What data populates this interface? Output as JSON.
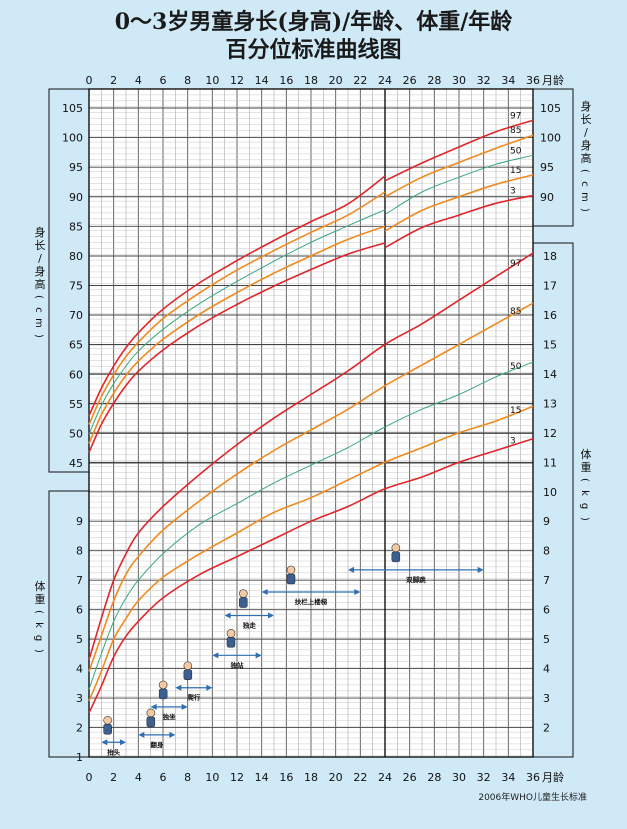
{
  "title_line1": "0～3岁男童身长(身高)/年龄、体重/年龄",
  "title_line2": "百分位标准曲线图",
  "source_note": "2006年WHO儿童生长标准",
  "chart_data": {
    "type": "line",
    "x_unit_label": "月龄",
    "x_ticks": [
      0,
      2,
      4,
      6,
      8,
      10,
      12,
      14,
      16,
      18,
      20,
      22,
      24,
      26,
      28,
      30,
      32,
      34,
      36
    ],
    "xlim": [
      0,
      36
    ],
    "grid": true,
    "length_panel": {
      "ylabel": "身长/身高(cm)",
      "ylim": [
        42,
        107
      ],
      "left_ticks": [
        45,
        50,
        55,
        60,
        65,
        70,
        75,
        80,
        85,
        90,
        95,
        100,
        105
      ],
      "right_ticks": [
        90,
        95,
        100,
        105
      ],
      "x_months": [
        0,
        1,
        2,
        3,
        4,
        6,
        9,
        12,
        15,
        18,
        21,
        24,
        27,
        30,
        33,
        36
      ],
      "series": [
        {
          "name": "97",
          "color": "#e0262b",
          "values": [
            53.0,
            57.6,
            61.4,
            64.5,
            67.0,
            71.0,
            75.5,
            79.2,
            82.6,
            85.8,
            88.8,
            93.5,
            95.7,
            98.4,
            101.0,
            102.9
          ]
        },
        {
          "name": "85",
          "color": "#f08a1f",
          "values": [
            51.5,
            56.2,
            59.9,
            63.0,
            65.4,
            69.4,
            73.8,
            77.6,
            80.9,
            84.0,
            86.9,
            90.8,
            93.3,
            95.8,
            98.2,
            100.4
          ]
        },
        {
          "name": "50",
          "color": "#3aa87b",
          "values": [
            49.9,
            54.7,
            58.4,
            61.4,
            63.9,
            67.6,
            72.0,
            75.7,
            79.1,
            82.3,
            85.1,
            87.8,
            90.8,
            93.3,
            95.5,
            97.0
          ]
        },
        {
          "name": "15",
          "color": "#f08a1f",
          "values": [
            48.3,
            53.1,
            56.8,
            59.8,
            62.2,
            65.9,
            70.2,
            73.8,
            77.1,
            80.0,
            82.8,
            85.0,
            87.7,
            90.0,
            92.1,
            93.7
          ]
        },
        {
          "name": "3",
          "color": "#e0262b",
          "values": [
            46.8,
            51.5,
            55.1,
            58.1,
            60.5,
            64.1,
            68.3,
            71.8,
            74.9,
            77.7,
            80.3,
            82.2,
            84.8,
            86.9,
            88.9,
            90.2
          ]
        }
      ]
    },
    "weight_panel": {
      "ylabel": "体重(kg)",
      "ylim": [
        1,
        19
      ],
      "left_ticks": [
        1,
        2,
        3,
        4,
        5,
        6,
        7,
        8,
        9
      ],
      "right_ticks": [
        2,
        3,
        4,
        5,
        6,
        7,
        8,
        9,
        10,
        11,
        12,
        13,
        14,
        15,
        16,
        17,
        18
      ],
      "x_months": [
        0,
        1,
        2,
        3,
        4,
        6,
        9,
        12,
        15,
        18,
        21,
        24,
        27,
        30,
        33,
        36
      ],
      "series": [
        {
          "name": "97",
          "color": "#e0262b",
          "values": [
            4.3,
            5.7,
            7.0,
            7.9,
            8.6,
            9.5,
            10.6,
            11.6,
            12.5,
            13.3,
            14.1,
            15.0,
            15.7,
            16.5,
            17.3,
            18.1
          ]
        },
        {
          "name": "85",
          "color": "#f08a1f",
          "values": [
            3.9,
            5.1,
            6.3,
            7.2,
            7.8,
            8.7,
            9.7,
            10.6,
            11.4,
            12.1,
            12.8,
            13.6,
            14.3,
            15.0,
            15.7,
            16.4
          ]
        },
        {
          "name": "50",
          "color": "#3aa87b",
          "values": [
            3.3,
            4.5,
            5.6,
            6.4,
            7.0,
            7.9,
            8.9,
            9.6,
            10.3,
            10.9,
            11.5,
            12.2,
            12.8,
            13.3,
            13.9,
            14.4
          ]
        },
        {
          "name": "15",
          "color": "#f08a1f",
          "values": [
            2.9,
            3.9,
            5.0,
            5.7,
            6.3,
            7.1,
            7.9,
            8.6,
            9.3,
            9.8,
            10.4,
            11.0,
            11.5,
            12.0,
            12.4,
            12.9
          ]
        },
        {
          "name": "3",
          "color": "#e0262b",
          "values": [
            2.5,
            3.4,
            4.4,
            5.1,
            5.6,
            6.4,
            7.2,
            7.8,
            8.4,
            9.0,
            9.5,
            10.1,
            10.5,
            11.0,
            11.4,
            11.8
          ]
        }
      ]
    },
    "milestones": [
      {
        "label": "抬头",
        "start": 1,
        "end": 3,
        "y_kg": 1.5
      },
      {
        "label": "翻身",
        "start": 4,
        "end": 7,
        "y_kg": 1.75
      },
      {
        "label": "独坐",
        "start": 5,
        "end": 8,
        "y_kg": 2.7
      },
      {
        "label": "爬行",
        "start": 7,
        "end": 10,
        "y_kg": 3.35
      },
      {
        "label": "独站",
        "start": 10,
        "end": 14,
        "y_kg": 4.45
      },
      {
        "label": "独走",
        "start": 11,
        "end": 15,
        "y_kg": 5.8
      },
      {
        "label": "扶栏上楼梯",
        "start": 14,
        "end": 22,
        "y_kg": 6.6
      },
      {
        "label": "双脚跳",
        "start": 21,
        "end": 32,
        "y_kg": 7.35
      }
    ]
  }
}
